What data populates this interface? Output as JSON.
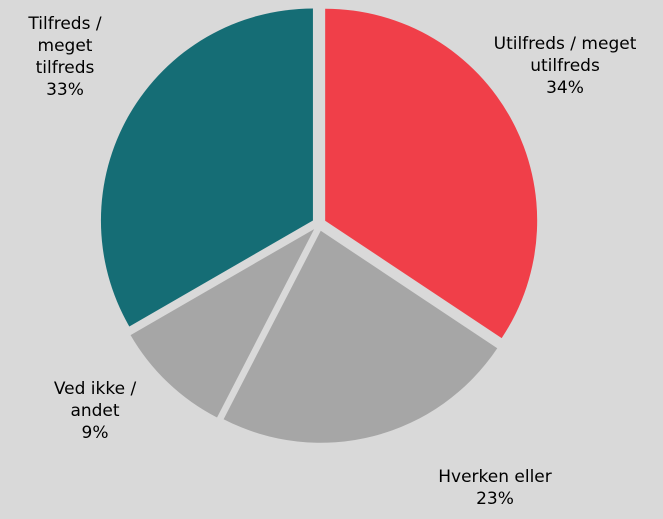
{
  "chart_data": {
    "type": "pie",
    "categories": [
      "Utilfreds / meget utilfreds",
      "Hverken eller",
      "Ved ikke / andet",
      "Tilfreds / meget tilfreds"
    ],
    "values": [
      34,
      23,
      9,
      33
    ],
    "value_labels": [
      "34%",
      "23%",
      "9%",
      "33%"
    ],
    "colors": [
      "#f03f49",
      "#a6a6a6",
      "#a6a6a6",
      "#156d75"
    ]
  }
}
